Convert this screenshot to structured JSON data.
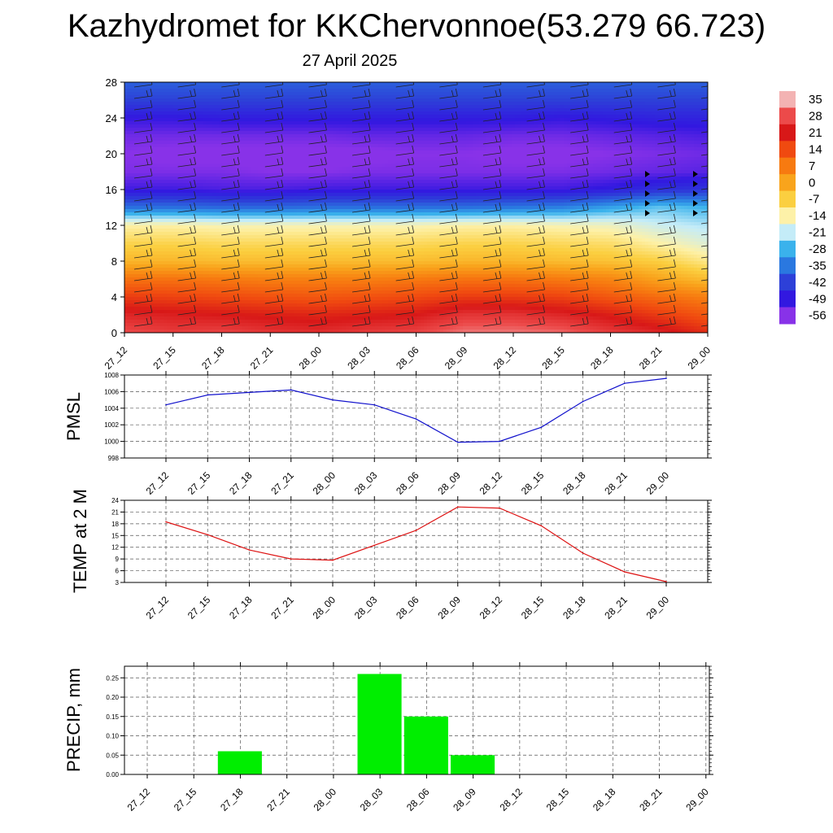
{
  "title": "Kazhydromet for KKChervonnoe(53.279 66.723)",
  "subtitle": "27 April 2025",
  "chart_data": [
    {
      "type": "heatmap",
      "name": "upper-air cross section",
      "x_labels": [
        "27_12",
        "27_15",
        "27_18",
        "27_21",
        "28_00",
        "28_03",
        "28_06",
        "28_09",
        "28_12",
        "28_15",
        "28_18",
        "28_21",
        "29_00"
      ],
      "y_ticks": [
        0,
        4,
        8,
        12,
        16,
        20,
        24,
        28
      ],
      "ylim": [
        0,
        28
      ],
      "colorbar_levels": [
        35,
        28,
        21,
        14,
        7,
        0,
        -7,
        -14,
        -21,
        -28,
        -35,
        -42,
        -49,
        -56
      ],
      "colorbar_colors": [
        "#f3b3b3",
        "#ec4a4a",
        "#d81818",
        "#f04a10",
        "#f77a10",
        "#f9a41c",
        "#fbcf40",
        "#fdf1a8",
        "#c4ecf8",
        "#3ab2ec",
        "#2a78e0",
        "#2d40d8",
        "#3218e0",
        "#8832e8"
      ],
      "temperature_field": [
        [
          28,
          26,
          27,
          25,
          24,
          26,
          27,
          31,
          31,
          30,
          26,
          23,
          18
        ],
        [
          23,
          22,
          21,
          20,
          19,
          20,
          21,
          25,
          25,
          23,
          20,
          16,
          12
        ],
        [
          16,
          15,
          14,
          13,
          12,
          13,
          14,
          16,
          16,
          15,
          12,
          9,
          6
        ],
        [
          8,
          8,
          7,
          6,
          6,
          6,
          7,
          8,
          8,
          7,
          5,
          0,
          -4
        ],
        [
          -3,
          -3,
          -4,
          -4,
          -4,
          -4,
          -4,
          -3,
          -3,
          -4,
          -5,
          -7,
          -12
        ],
        [
          -8,
          -8,
          -9,
          -9,
          -9,
          -9,
          -9,
          -8,
          -8,
          -9,
          -10,
          -14,
          -18
        ],
        [
          -14,
          -14,
          -15,
          -15,
          -15,
          -15,
          -15,
          -14,
          -14,
          -15,
          -16,
          -20,
          -22
        ],
        [
          -36,
          -36,
          -37,
          -37,
          -36,
          -36,
          -36,
          -36,
          -35,
          -34,
          -30,
          -26,
          -28
        ],
        [
          -50,
          -50,
          -51,
          -51,
          -50,
          -50,
          -50,
          -50,
          -50,
          -50,
          -48,
          -45,
          -44
        ],
        [
          -55,
          -55,
          -55,
          -56,
          -56,
          -55,
          -55,
          -55,
          -55,
          -55,
          -54,
          -53,
          -52
        ],
        [
          -56,
          -57,
          -57,
          -57,
          -57,
          -57,
          -56,
          -56,
          -57,
          -57,
          -56,
          -55,
          -54
        ],
        [
          -54,
          -54,
          -54,
          -54,
          -54,
          -53,
          -53,
          -53,
          -54,
          -54,
          -53,
          -52,
          -51
        ],
        [
          -49,
          -49,
          -48,
          -48,
          -48,
          -48,
          -48,
          -48,
          -48,
          -49,
          -48,
          -47,
          -47
        ],
        [
          -42,
          -42,
          -42,
          -42,
          -42,
          -42,
          -42,
          -42,
          -42,
          -42,
          -42,
          -42,
          -42
        ],
        [
          -38,
          -38,
          -38,
          -38,
          -38,
          -38,
          -38,
          -38,
          -38,
          -38,
          -38,
          -38,
          -38
        ]
      ]
    },
    {
      "type": "line",
      "name": "pmsl",
      "ylabel": "PMSL",
      "categories": [
        "27_12",
        "27_15",
        "27_18",
        "27_21",
        "28_00",
        "28_03",
        "28_06",
        "28_09",
        "28_12",
        "28_15",
        "28_18",
        "28_21",
        "29_00"
      ],
      "values": [
        1004.4,
        1005.6,
        1005.9,
        1006.2,
        1005.0,
        1004.4,
        1002.7,
        999.9,
        1000.0,
        1001.7,
        1004.8,
        1007.0,
        1007.6
      ],
      "ylim": [
        998,
        1008
      ],
      "y_ticks": [
        998,
        1000,
        1002,
        1004,
        1006,
        1008
      ],
      "color": "#1111cc",
      "grid": true
    },
    {
      "type": "line",
      "name": "temp",
      "ylabel": "TEMP at 2 M",
      "categories": [
        "27_12",
        "27_15",
        "27_18",
        "27_21",
        "28_00",
        "28_03",
        "28_06",
        "28_09",
        "28_12",
        "28_15",
        "28_18",
        "28_21",
        "29_00"
      ],
      "values": [
        18.5,
        15.2,
        11.3,
        9.0,
        8.7,
        12.5,
        16.3,
        22.3,
        22.0,
        17.5,
        10.5,
        5.7,
        3.2
      ],
      "ylim": [
        3,
        24
      ],
      "y_ticks": [
        3,
        6,
        9,
        12,
        15,
        18,
        21,
        24
      ],
      "color": "#dd1111",
      "grid": true
    },
    {
      "type": "bar",
      "name": "precip",
      "ylabel": "PRECIP, mm",
      "categories": [
        "27_12",
        "27_15",
        "27_18",
        "27_21",
        "28_00",
        "28_03",
        "28_06",
        "28_09",
        "28_12",
        "28_15",
        "28_18",
        "28_21",
        "29_00"
      ],
      "values": [
        0,
        0,
        0.06,
        0,
        0,
        0.26,
        0.15,
        0.05,
        0,
        0,
        0,
        0,
        0
      ],
      "ylim": [
        0,
        0.28
      ],
      "y_ticks": [
        "0.00",
        "0.05",
        "0.10",
        "0.15",
        "0.20",
        "0.25"
      ],
      "color": "#00ee00",
      "grid": true
    }
  ]
}
